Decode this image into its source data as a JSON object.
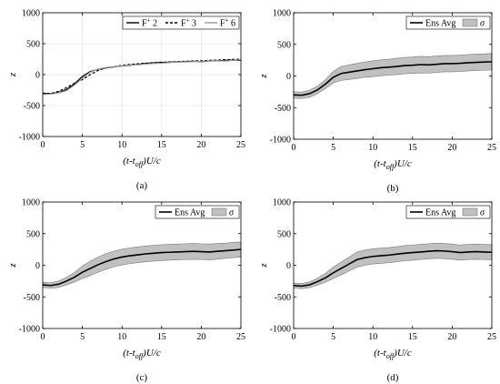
{
  "chart_data": [
    {
      "id": "a",
      "type": "line",
      "panel_label": "(a)",
      "xlabel": "(t-t_off)U/c",
      "ylabel": "z",
      "xlim": [
        0,
        25
      ],
      "ylim": [
        -1000,
        1000
      ],
      "xticks": [
        0,
        5,
        10,
        15,
        20,
        25
      ],
      "yticks": [
        -1000,
        -500,
        0,
        500,
        1000
      ],
      "grid": true,
      "legend_position": "top-right",
      "series": [
        {
          "name": "F+ 2",
          "style": "solid",
          "color": "#000000",
          "x": [
            0,
            1,
            2,
            3,
            4,
            5,
            6,
            7,
            8,
            9,
            10,
            11,
            12,
            13,
            14,
            15,
            16,
            17,
            18,
            19,
            20,
            21,
            22,
            23,
            24,
            25
          ],
          "y": [
            -300,
            -310,
            -290,
            -240,
            -150,
            -30,
            50,
            85,
            110,
            125,
            140,
            150,
            165,
            180,
            190,
            195,
            200,
            205,
            210,
            215,
            210,
            220,
            225,
            230,
            235,
            230
          ]
        },
        {
          "name": "F+ 3",
          "style": "dashed",
          "color": "#000000",
          "x": [
            0,
            1,
            2,
            3,
            4,
            5,
            6,
            7,
            8,
            9,
            10,
            11,
            12,
            13,
            14,
            15,
            16,
            17,
            18,
            19,
            20,
            21,
            22,
            23,
            24,
            25
          ],
          "y": [
            -310,
            -305,
            -270,
            -210,
            -140,
            -80,
            0,
            70,
            110,
            130,
            150,
            165,
            175,
            185,
            195,
            200,
            205,
            210,
            215,
            220,
            225,
            230,
            235,
            240,
            245,
            250
          ]
        },
        {
          "name": "F+ 6",
          "style": "solid",
          "color": "#999999",
          "x": [
            0,
            1,
            2,
            3,
            4,
            5,
            6,
            7,
            8,
            9,
            10,
            11,
            12,
            13,
            14,
            15,
            16,
            17,
            18,
            19,
            20,
            21,
            22,
            23,
            24,
            25
          ],
          "y": [
            -320,
            -315,
            -295,
            -260,
            -170,
            -60,
            40,
            90,
            115,
            130,
            140,
            155,
            160,
            170,
            180,
            185,
            195,
            200,
            205,
            210,
            215,
            220,
            225,
            220,
            230,
            240
          ]
        }
      ]
    },
    {
      "id": "b",
      "type": "line",
      "panel_label": "(b)",
      "xlabel": "(t-t_off)U/c",
      "ylabel": "z",
      "xlim": [
        0,
        25
      ],
      "ylim": [
        -1000,
        1000
      ],
      "xticks": [
        0,
        5,
        10,
        15,
        20,
        25
      ],
      "yticks": [
        -1000,
        -500,
        0,
        500,
        1000
      ],
      "grid": false,
      "legend_position": "top-right",
      "series": [
        {
          "name": "Ens Avg",
          "style": "solid",
          "color": "#000000",
          "x": [
            0,
            1,
            2,
            3,
            4,
            5,
            6,
            7,
            8,
            9,
            10,
            11,
            12,
            13,
            14,
            15,
            16,
            17,
            18,
            19,
            20,
            21,
            22,
            23,
            24,
            25
          ],
          "y": [
            -300,
            -305,
            -280,
            -220,
            -130,
            -20,
            40,
            60,
            80,
            100,
            115,
            130,
            140,
            150,
            165,
            170,
            180,
            175,
            185,
            195,
            195,
            200,
            210,
            215,
            220,
            225
          ],
          "band": [
            50,
            50,
            55,
            60,
            70,
            90,
            110,
            115,
            120,
            120,
            125,
            125,
            125,
            130,
            130,
            130,
            130,
            130,
            130,
            130,
            130,
            130,
            130,
            130,
            130,
            130
          ]
        }
      ],
      "band_label": "σ"
    },
    {
      "id": "c",
      "type": "line",
      "panel_label": "(c)",
      "xlabel": "(t-t_off)U/c",
      "ylabel": "z",
      "xlim": [
        0,
        25
      ],
      "ylim": [
        -1000,
        1000
      ],
      "xticks": [
        0,
        5,
        10,
        15,
        20,
        25
      ],
      "yticks": [
        -1000,
        -500,
        0,
        500,
        1000
      ],
      "grid": false,
      "legend_position": "top-right",
      "series": [
        {
          "name": "Ens Avg",
          "style": "solid",
          "color": "#000000",
          "x": [
            0,
            1,
            2,
            3,
            4,
            5,
            6,
            7,
            8,
            9,
            10,
            11,
            12,
            13,
            14,
            15,
            16,
            17,
            18,
            19,
            20,
            21,
            22,
            23,
            24,
            25
          ],
          "y": [
            -310,
            -320,
            -300,
            -250,
            -190,
            -110,
            -50,
            10,
            60,
            100,
            130,
            150,
            165,
            180,
            190,
            200,
            205,
            210,
            215,
            220,
            215,
            210,
            220,
            230,
            240,
            250
          ],
          "band": [
            40,
            45,
            50,
            60,
            75,
            100,
            115,
            120,
            125,
            125,
            125,
            125,
            125,
            125,
            125,
            125,
            125,
            125,
            125,
            125,
            125,
            125,
            125,
            120,
            120,
            120
          ]
        }
      ],
      "band_label": "σ"
    },
    {
      "id": "d",
      "type": "line",
      "panel_label": "(d)",
      "xlabel": "(t-t_off)U/c",
      "ylabel": "z",
      "xlim": [
        0,
        25
      ],
      "ylim": [
        -1000,
        1000
      ],
      "xticks": [
        0,
        5,
        10,
        15,
        20,
        25
      ],
      "yticks": [
        -1000,
        -500,
        0,
        500,
        1000
      ],
      "grid": false,
      "legend_position": "top-right",
      "series": [
        {
          "name": "Ens Avg",
          "style": "solid",
          "color": "#000000",
          "x": [
            0,
            1,
            2,
            3,
            4,
            5,
            6,
            7,
            8,
            9,
            10,
            11,
            12,
            13,
            14,
            15,
            16,
            17,
            18,
            19,
            20,
            21,
            22,
            23,
            24,
            25
          ],
          "y": [
            -320,
            -330,
            -310,
            -260,
            -200,
            -120,
            -50,
            20,
            90,
            120,
            140,
            150,
            160,
            175,
            190,
            200,
            210,
            220,
            230,
            225,
            215,
            200,
            210,
            215,
            210,
            205
          ],
          "band": [
            40,
            40,
            45,
            55,
            70,
            90,
            100,
            110,
            120,
            120,
            120,
            120,
            120,
            120,
            120,
            120,
            120,
            120,
            120,
            120,
            120,
            120,
            120,
            120,
            120,
            120
          ]
        }
      ],
      "band_label": "σ"
    }
  ]
}
